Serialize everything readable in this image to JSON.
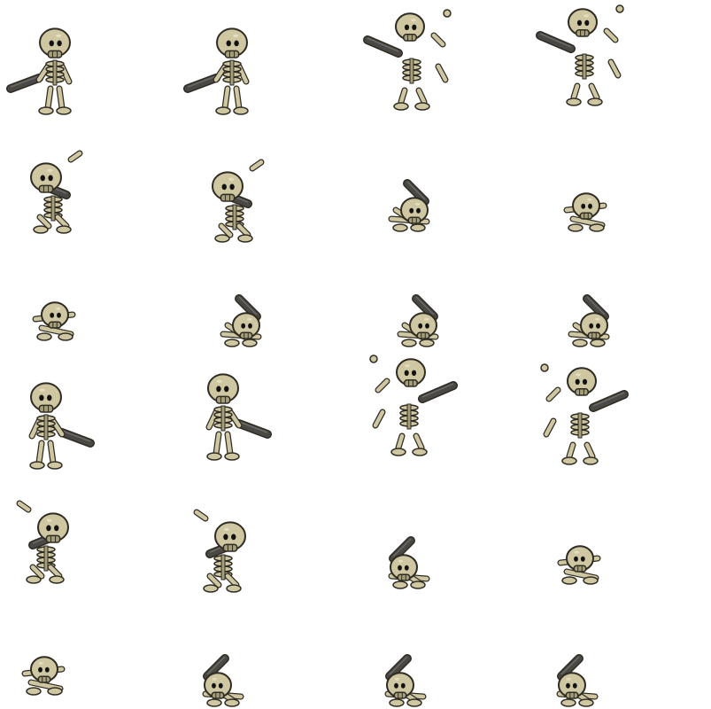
{
  "sheet": {
    "rows": 6,
    "cols": 4,
    "background": "#ffffff",
    "palette": {
      "bone": "#cfc7a2",
      "bone_shade": "#a59e7a",
      "outline": "#2e2b22",
      "eye": "#121212",
      "blade": "#4a4845",
      "blade_edge": "#6c6a66"
    }
  },
  "frames": [
    {
      "facing": "left",
      "pose": "stand-sword"
    },
    {
      "facing": "left",
      "pose": "stand-sword"
    },
    {
      "facing": "left",
      "pose": "break-apart"
    },
    {
      "facing": "left",
      "pose": "break-apart"
    },
    {
      "facing": "left",
      "pose": "collapse"
    },
    {
      "facing": "left",
      "pose": "collapse"
    },
    {
      "facing": "left",
      "pose": "heap-sword"
    },
    {
      "facing": "left",
      "pose": "heap"
    },
    {
      "facing": "left",
      "pose": "heap"
    },
    {
      "facing": "left",
      "pose": "heap-sword"
    },
    {
      "facing": "left",
      "pose": "heap-sword"
    },
    {
      "facing": "left",
      "pose": "heap-sword"
    },
    {
      "facing": "right",
      "pose": "stand-sword"
    },
    {
      "facing": "right",
      "pose": "stand-sword"
    },
    {
      "facing": "right",
      "pose": "break-apart"
    },
    {
      "facing": "right",
      "pose": "break-apart"
    },
    {
      "facing": "right",
      "pose": "collapse"
    },
    {
      "facing": "right",
      "pose": "collapse"
    },
    {
      "facing": "right",
      "pose": "heap-sword"
    },
    {
      "facing": "right",
      "pose": "heap"
    },
    {
      "facing": "right",
      "pose": "heap"
    },
    {
      "facing": "right",
      "pose": "heap-sword"
    },
    {
      "facing": "right",
      "pose": "heap-sword"
    },
    {
      "facing": "right",
      "pose": "heap-sword"
    }
  ]
}
